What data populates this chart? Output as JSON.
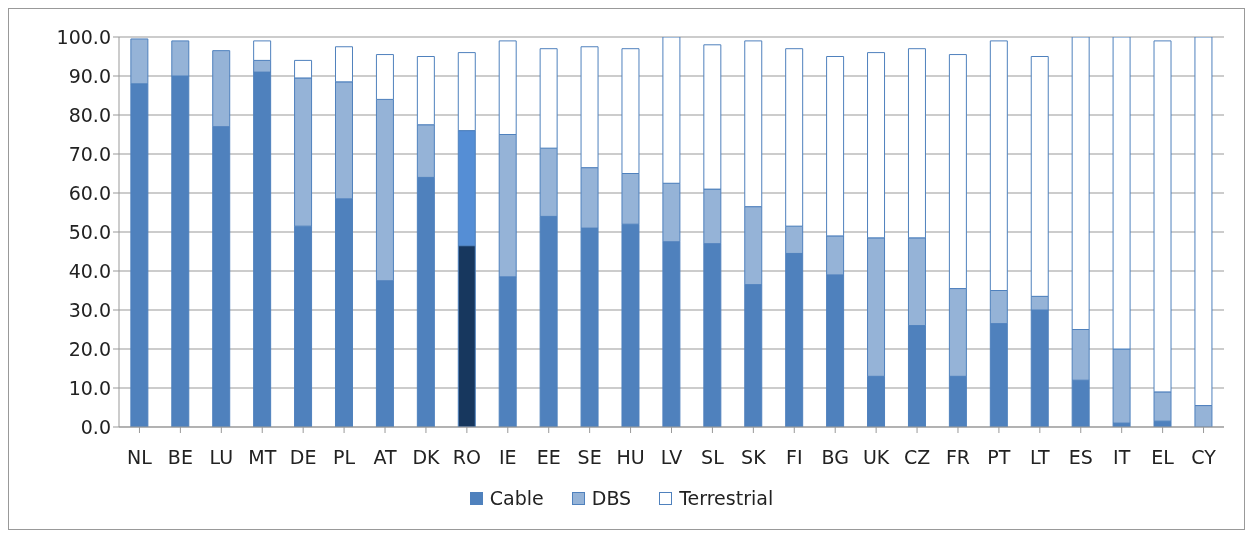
{
  "chart_data": {
    "type": "bar",
    "stacked": true,
    "categories": [
      "NL",
      "BE",
      "LU",
      "MT",
      "DE",
      "PL",
      "AT",
      "DK",
      "RO",
      "IE",
      "EE",
      "SE",
      "HU",
      "LV",
      "SL",
      "SK",
      "FI",
      "BG",
      "UK",
      "CZ",
      "FR",
      "PT",
      "LT",
      "ES",
      "IT",
      "EL",
      "CY"
    ],
    "series": [
      {
        "name": "Cable",
        "color": "#4f81bd",
        "colors": [
          "#4f81bd",
          "#4f81bd",
          "#4f81bd",
          "#4f81bd",
          "#4f81bd",
          "#4f81bd",
          "#4f81bd",
          "#4f81bd",
          "#17375e",
          "#4f81bd",
          "#4f81bd",
          "#4f81bd",
          "#4f81bd",
          "#4f81bd",
          "#4f81bd",
          "#4f81bd",
          "#4f81bd",
          "#4f81bd",
          "#4f81bd",
          "#4f81bd",
          "#4f81bd",
          "#4f81bd",
          "#4f81bd",
          "#4f81bd",
          "#4f81bd",
          "#4f81bd",
          "#4f81bd"
        ],
        "values": [
          88,
          90,
          77,
          91,
          51.5,
          58.5,
          37.5,
          64,
          46.5,
          38.5,
          54,
          51,
          52,
          47.5,
          47,
          36.5,
          44.5,
          39,
          13,
          26,
          13,
          26.5,
          30,
          12,
          1,
          1.5,
          0
        ]
      },
      {
        "name": "DBS",
        "color": "#95b3d7",
        "colors": [
          "#95b3d7",
          "#95b3d7",
          "#95b3d7",
          "#95b3d7",
          "#95b3d7",
          "#95b3d7",
          "#95b3d7",
          "#95b3d7",
          "#558ed5",
          "#95b3d7",
          "#95b3d7",
          "#95b3d7",
          "#95b3d7",
          "#95b3d7",
          "#95b3d7",
          "#95b3d7",
          "#95b3d7",
          "#95b3d7",
          "#95b3d7",
          "#95b3d7",
          "#95b3d7",
          "#95b3d7",
          "#95b3d7",
          "#95b3d7",
          "#95b3d7",
          "#95b3d7",
          "#95b3d7"
        ],
        "values": [
          11.5,
          9,
          19.5,
          3,
          38,
          30,
          46.5,
          13.5,
          29.5,
          36.5,
          17.5,
          15.5,
          13,
          15,
          14,
          20,
          7,
          10,
          35.5,
          22.5,
          22.5,
          8.5,
          3.5,
          13,
          19,
          7.5,
          5.5
        ]
      },
      {
        "name": "Terrestrial",
        "color": "#ffffff",
        "values": [
          0,
          0,
          0,
          5,
          4.5,
          9,
          11.5,
          17.5,
          20,
          24,
          25.5,
          31,
          32,
          37.5,
          37,
          42.5,
          45.5,
          46,
          47.5,
          48.5,
          60,
          64,
          61.5,
          75,
          80,
          90,
          94.5
        ]
      }
    ],
    "ylim": [
      0,
      100
    ],
    "yticks": [
      {
        "value": 0,
        "label": "0.0"
      },
      {
        "value": 10,
        "label": "10.0"
      },
      {
        "value": 20,
        "label": "20.0"
      },
      {
        "value": 30,
        "label": "30.0"
      },
      {
        "value": 40,
        "label": "40.0"
      },
      {
        "value": 50,
        "label": "50.0"
      },
      {
        "value": 60,
        "label": "60.0"
      },
      {
        "value": 70,
        "label": "70.0"
      },
      {
        "value": 80,
        "label": "80.0"
      },
      {
        "value": 90,
        "label": "90.0"
      },
      {
        "value": 100,
        "label": "100.0"
      }
    ],
    "grid": "y",
    "legend": "bottom"
  }
}
